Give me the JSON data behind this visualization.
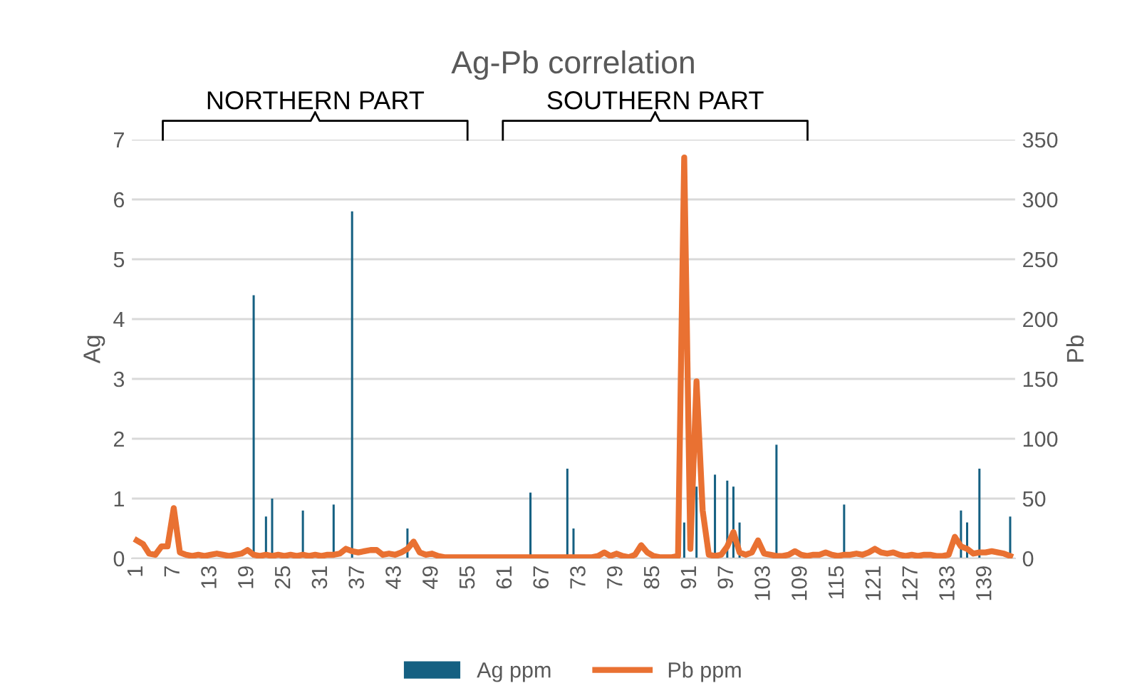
{
  "chart_data": {
    "type": "bar",
    "title": "Ag-Pb correlation",
    "ylabel": "Ag",
    "y2label": "Pb",
    "categories": [
      "1",
      null,
      null,
      null,
      null,
      null,
      "7",
      null,
      null,
      null,
      null,
      null,
      "13",
      null,
      null,
      null,
      null,
      null,
      "19",
      null,
      null,
      null,
      null,
      null,
      "25",
      null,
      null,
      null,
      null,
      null,
      "31",
      null,
      null,
      null,
      null,
      null,
      "37",
      null,
      null,
      null,
      null,
      null,
      "43",
      null,
      null,
      null,
      null,
      null,
      "49",
      null,
      null,
      null,
      null,
      null,
      "55",
      null,
      null,
      null,
      null,
      null,
      "61",
      null,
      null,
      null,
      null,
      null,
      "67",
      null,
      null,
      null,
      null,
      null,
      "73",
      null,
      null,
      null,
      null,
      null,
      "79",
      null,
      null,
      null,
      null,
      null,
      "85",
      null,
      null,
      null,
      null,
      null,
      "91",
      null,
      null,
      null,
      null,
      null,
      "97",
      null,
      null,
      null,
      null,
      null,
      "103",
      null,
      null,
      null,
      null,
      null,
      "109",
      null,
      null,
      null,
      null,
      null,
      "115",
      null,
      null,
      null,
      null,
      null,
      "121",
      null,
      null,
      null,
      null,
      null,
      "127",
      null,
      null,
      null,
      null,
      null,
      "133",
      null,
      null,
      null,
      null,
      null,
      "139",
      null,
      null,
      null,
      null
    ],
    "series": [
      {
        "name": "Ag ppm",
        "color": "#156082",
        "values": [
          0,
          0,
          0,
          0,
          0,
          0,
          0,
          0,
          0,
          0,
          0,
          0,
          0,
          0,
          0,
          0,
          0,
          0,
          0,
          4.4,
          0,
          0.7,
          1.0,
          0,
          0,
          0,
          0,
          0.8,
          0,
          0,
          0,
          0,
          0.9,
          0,
          0,
          5.8,
          0,
          0,
          0,
          0,
          0,
          0,
          0,
          0,
          0.5,
          0,
          0,
          0,
          0,
          0,
          0,
          0,
          0,
          0,
          0,
          0,
          0,
          0,
          0,
          0,
          0,
          0,
          0,
          0,
          1.1,
          0,
          0,
          0,
          0,
          0,
          1.5,
          0.5,
          0,
          0,
          0,
          0,
          0,
          0,
          0,
          0,
          0,
          0,
          0,
          0,
          0,
          0,
          0,
          0,
          0,
          0.6,
          0,
          1.2,
          0,
          0,
          1.4,
          0,
          1.3,
          1.2,
          0.6,
          0,
          0,
          0,
          0,
          0,
          1.9,
          0,
          0,
          0,
          0,
          0,
          0,
          0,
          0,
          0,
          0,
          0.9,
          0,
          0,
          0,
          0,
          0,
          0,
          0,
          0,
          0,
          0,
          0,
          0,
          0,
          0,
          0,
          0,
          0,
          0,
          0.8,
          0.6,
          0,
          1.5,
          0,
          0,
          0,
          0,
          0.7
        ]
      },
      {
        "name": "Pb ppm",
        "type": "line",
        "axis": "y2",
        "color": "#e97132",
        "values": [
          15,
          12,
          4,
          3,
          10,
          10,
          42,
          5,
          3,
          2,
          3,
          2,
          3,
          4,
          3,
          2,
          3,
          4,
          7,
          3,
          2,
          3,
          2,
          3,
          2,
          3,
          2,
          3,
          2,
          3,
          2,
          3,
          3,
          4,
          8,
          6,
          5,
          6,
          7,
          7,
          3,
          4,
          3,
          5,
          8,
          14,
          5,
          3,
          4,
          2,
          1,
          1,
          1,
          1,
          1,
          1,
          1,
          1,
          1,
          1,
          1,
          1,
          1,
          1,
          1,
          1,
          1,
          1,
          1,
          1,
          1,
          1,
          1,
          1,
          1,
          2,
          5,
          2,
          4,
          2,
          1,
          3,
          11,
          5,
          2,
          1,
          1,
          1,
          2,
          335,
          8,
          148,
          40,
          3,
          2,
          3,
          10,
          22,
          5,
          3,
          5,
          15,
          4,
          3,
          2,
          2,
          3,
          6,
          3,
          2,
          3,
          3,
          5,
          3,
          2,
          3,
          3,
          4,
          3,
          5,
          8,
          5,
          4,
          5,
          3,
          2,
          3,
          2,
          3,
          3,
          2,
          2,
          3,
          18,
          10,
          8,
          4,
          5,
          5,
          6,
          5,
          4,
          2
        ]
      }
    ],
    "ylim": [
      0,
      7
    ],
    "yticks": [
      0,
      1,
      2,
      3,
      4,
      5,
      6,
      7
    ],
    "y2lim": [
      0,
      350
    ],
    "y2ticks": [
      0,
      50,
      100,
      150,
      200,
      250,
      300,
      350
    ],
    "grid": "y",
    "legend": "bottom",
    "annotations": [
      "NORTHERN PART",
      "SOUTHERN PART"
    ]
  }
}
